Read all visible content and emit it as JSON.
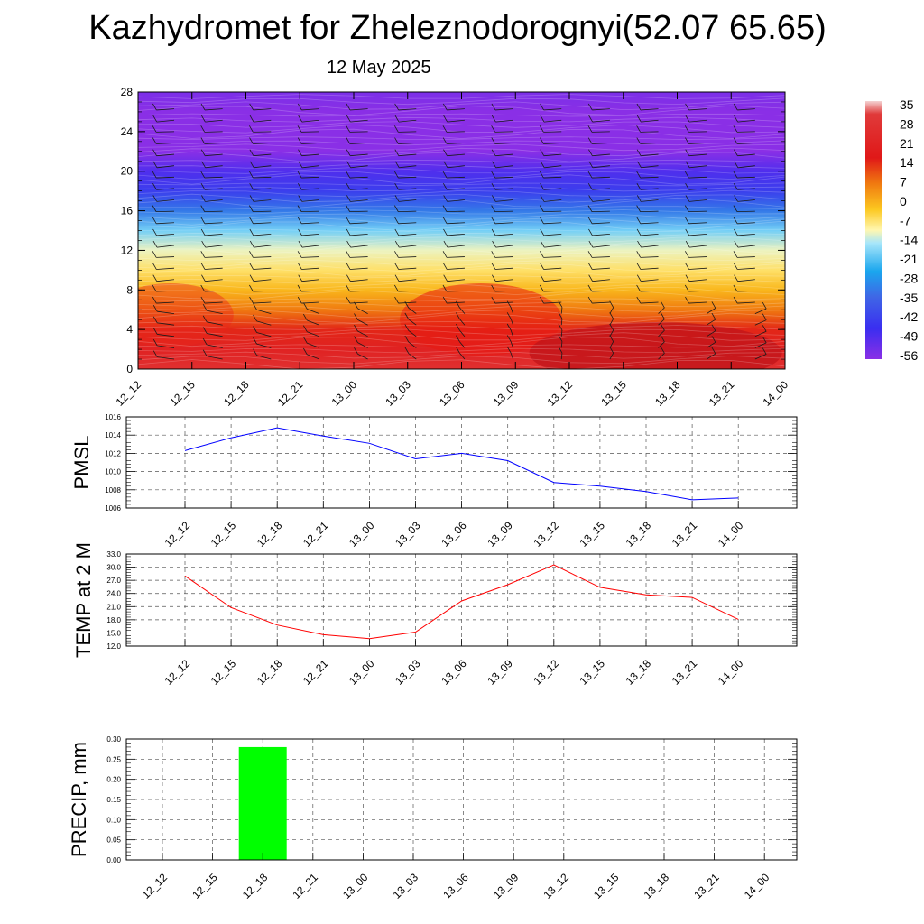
{
  "title": "Kazhydromet for Zheleznodorognyi(52.07 65.65)",
  "subtitle": "12 May 2025",
  "time_labels": [
    "12_12",
    "12_15",
    "12_18",
    "12_21",
    "13_00",
    "13_03",
    "13_06",
    "13_09",
    "13_12",
    "13_15",
    "13_18",
    "13_21",
    "14_00"
  ],
  "colorbar": {
    "labels": [
      "35",
      "28",
      "21",
      "14",
      "7",
      "0",
      "-7",
      "-14",
      "-21",
      "-28",
      "-35",
      "-42",
      "-49",
      "-56"
    ]
  },
  "chart_data": [
    {
      "type": "heatmap",
      "title": "",
      "xlabel": "",
      "ylabel": "",
      "ylim": [
        0,
        28
      ],
      "yticks": [
        "0",
        "4",
        "8",
        "12",
        "16",
        "20",
        "24",
        "28"
      ],
      "categories": [
        "12_12",
        "12_15",
        "12_18",
        "12_21",
        "13_00",
        "13_03",
        "13_06",
        "13_09",
        "13_12",
        "13_15",
        "13_18",
        "13_21",
        "14_00"
      ],
      "note_color_scale_min": -56,
      "note_color_scale_max": 35,
      "profile_levels": [
        0,
        2,
        4,
        6,
        8,
        10,
        12,
        14,
        16,
        18,
        20,
        22,
        24,
        26,
        28
      ],
      "profile_values": [
        28,
        24,
        20,
        14,
        7,
        0,
        -7,
        -18,
        -32,
        -45,
        -52,
        -60,
        -63,
        -61,
        -58
      ],
      "colors": {
        "high": "#c41a1a",
        "low": "#7b28e8"
      }
    },
    {
      "type": "line",
      "ylabel": "PMSL",
      "categories": [
        "12_12",
        "12_15",
        "12_18",
        "12_21",
        "13_00",
        "13_03",
        "13_06",
        "13_09",
        "13_12",
        "13_15",
        "13_18",
        "13_21",
        "14_00"
      ],
      "values": [
        1012.3,
        1013.7,
        1014.8,
        1013.9,
        1013.1,
        1011.4,
        1012.0,
        1011.2,
        1008.8,
        1008.4,
        1007.8,
        1006.9,
        1007.1
      ],
      "ylim": [
        1006,
        1016
      ],
      "yticks": [
        "1006",
        "1008",
        "1010",
        "1012",
        "1014",
        "1016"
      ],
      "grid": true,
      "color": "#0000ff"
    },
    {
      "type": "line",
      "ylabel": "TEMP at 2 M",
      "categories": [
        "12_12",
        "12_15",
        "12_18",
        "12_21",
        "13_00",
        "13_03",
        "13_06",
        "13_09",
        "13_12",
        "13_15",
        "13_18",
        "13_21",
        "14_00"
      ],
      "values": [
        28.0,
        20.8,
        16.8,
        14.6,
        13.7,
        15.2,
        22.3,
        26.0,
        30.5,
        25.4,
        23.7,
        23.1,
        18.1
      ],
      "ylim": [
        12,
        33
      ],
      "yticks": [
        "12.0",
        "15.0",
        "18.0",
        "21.0",
        "24.0",
        "27.0",
        "30.0",
        "33.0"
      ],
      "grid": true,
      "color": "#ff0000"
    },
    {
      "type": "bar",
      "ylabel": "PRECIP, mm",
      "categories": [
        "12_12",
        "12_15",
        "12_18",
        "12_21",
        "13_00",
        "13_03",
        "13_06",
        "13_09",
        "13_12",
        "13_15",
        "13_18",
        "13_21",
        "14_00"
      ],
      "values": [
        0,
        0,
        0.28,
        0,
        0,
        0,
        0,
        0,
        0,
        0,
        0,
        0,
        0
      ],
      "ylim": [
        0,
        0.3
      ],
      "yticks": [
        "0.00",
        "0.05",
        "0.10",
        "0.15",
        "0.20",
        "0.25",
        "0.30"
      ],
      "grid": true,
      "color": "#00ff00"
    }
  ]
}
